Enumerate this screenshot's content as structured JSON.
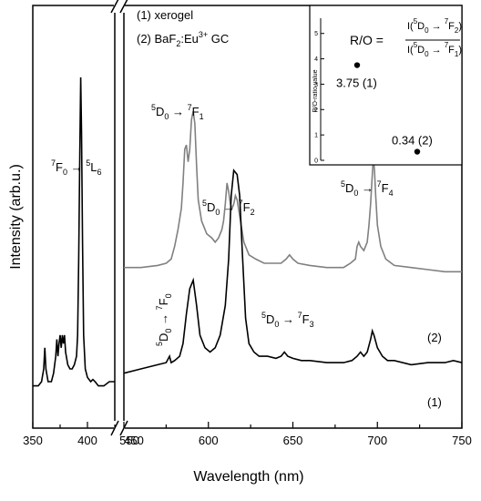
{
  "chart_data": {
    "type": "line",
    "xlabel": "Wavelength (nm)",
    "ylabel": "Intensity (arb.u.)",
    "x_axis_break": {
      "left_range": [
        350,
        425
      ],
      "right_range": [
        550,
        750
      ]
    },
    "left_ticks": [
      "350",
      "400",
      "450"
    ],
    "right_ticks": [
      "550",
      "600",
      "650",
      "700",
      "750"
    ],
    "legend": [
      {
        "id": "1",
        "text": "(1) xerogel"
      },
      {
        "id": "2",
        "prefix": "(2) BaF",
        "sub": "2",
        "mid": ":Eu",
        "sup": "3+",
        "suffix": " GC"
      }
    ],
    "series": [
      {
        "label": "(1)",
        "color": "#000000",
        "left_points": [
          [
            350,
            0.1
          ],
          [
            355,
            0.1
          ],
          [
            358,
            0.11
          ],
          [
            360,
            0.14
          ],
          [
            361,
            0.19
          ],
          [
            362,
            0.14
          ],
          [
            364,
            0.11
          ],
          [
            367,
            0.11
          ],
          [
            369,
            0.13
          ],
          [
            371,
            0.17
          ],
          [
            372,
            0.21
          ],
          [
            373,
            0.17
          ],
          [
            374,
            0.2
          ],
          [
            375,
            0.22
          ],
          [
            376,
            0.19
          ],
          [
            377,
            0.22
          ],
          [
            378,
            0.2
          ],
          [
            379,
            0.22
          ],
          [
            380,
            0.18
          ],
          [
            382,
            0.15
          ],
          [
            384,
            0.14
          ],
          [
            386,
            0.14
          ],
          [
            388,
            0.15
          ],
          [
            390,
            0.17
          ],
          [
            391,
            0.22
          ],
          [
            392,
            0.4
          ],
          [
            393,
            0.65
          ],
          [
            393.8,
            0.83
          ],
          [
            394.6,
            0.7
          ],
          [
            395.5,
            0.44
          ],
          [
            396.5,
            0.22
          ],
          [
            398,
            0.14
          ],
          [
            400,
            0.12
          ],
          [
            403,
            0.11
          ],
          [
            405,
            0.115
          ],
          [
            407,
            0.11
          ],
          [
            410,
            0.1
          ],
          [
            415,
            0.1
          ],
          [
            420,
            0.11
          ],
          [
            425,
            0.11
          ]
        ],
        "right_points": [
          [
            550,
            0.13
          ],
          [
            560,
            0.14
          ],
          [
            570,
            0.15
          ],
          [
            575,
            0.155
          ],
          [
            577,
            0.17
          ],
          [
            578,
            0.155
          ],
          [
            580,
            0.16
          ],
          [
            583,
            0.17
          ],
          [
            585,
            0.2
          ],
          [
            587,
            0.27
          ],
          [
            589,
            0.33
          ],
          [
            591,
            0.35
          ],
          [
            593,
            0.29
          ],
          [
            595,
            0.22
          ],
          [
            598,
            0.19
          ],
          [
            601,
            0.18
          ],
          [
            604,
            0.19
          ],
          [
            607,
            0.22
          ],
          [
            610,
            0.29
          ],
          [
            612,
            0.4
          ],
          [
            613.5,
            0.55
          ],
          [
            615,
            0.61
          ],
          [
            617,
            0.6
          ],
          [
            618.5,
            0.55
          ],
          [
            620,
            0.42
          ],
          [
            622,
            0.26
          ],
          [
            624,
            0.2
          ],
          [
            627,
            0.18
          ],
          [
            630,
            0.17
          ],
          [
            635,
            0.17
          ],
          [
            640,
            0.165
          ],
          [
            643,
            0.17
          ],
          [
            645,
            0.18
          ],
          [
            647,
            0.17
          ],
          [
            650,
            0.165
          ],
          [
            655,
            0.16
          ],
          [
            660,
            0.16
          ],
          [
            670,
            0.155
          ],
          [
            680,
            0.155
          ],
          [
            685,
            0.16
          ],
          [
            688,
            0.17
          ],
          [
            690,
            0.18
          ],
          [
            692,
            0.17
          ],
          [
            694,
            0.18
          ],
          [
            696,
            0.21
          ],
          [
            697,
            0.23
          ],
          [
            698,
            0.22
          ],
          [
            700,
            0.19
          ],
          [
            703,
            0.17
          ],
          [
            706,
            0.16
          ],
          [
            710,
            0.16
          ],
          [
            720,
            0.15
          ],
          [
            730,
            0.155
          ],
          [
            740,
            0.155
          ],
          [
            745,
            0.16
          ],
          [
            750,
            0.155
          ]
        ]
      },
      {
        "label": "(2)",
        "color": "#808080",
        "right_points": [
          [
            550,
            0.38
          ],
          [
            560,
            0.38
          ],
          [
            570,
            0.385
          ],
          [
            575,
            0.39
          ],
          [
            578,
            0.4
          ],
          [
            580,
            0.43
          ],
          [
            582,
            0.47
          ],
          [
            584,
            0.52
          ],
          [
            585,
            0.58
          ],
          [
            586,
            0.66
          ],
          [
            587,
            0.67
          ],
          [
            588,
            0.63
          ],
          [
            589,
            0.66
          ],
          [
            590,
            0.73
          ],
          [
            591,
            0.75
          ],
          [
            592,
            0.72
          ],
          [
            593,
            0.62
          ],
          [
            594,
            0.54
          ],
          [
            596,
            0.49
          ],
          [
            599,
            0.46
          ],
          [
            602,
            0.45
          ],
          [
            604,
            0.44
          ],
          [
            606,
            0.45
          ],
          [
            608,
            0.47
          ],
          [
            609,
            0.49
          ],
          [
            610,
            0.53
          ],
          [
            611,
            0.58
          ],
          [
            612,
            0.56
          ],
          [
            613,
            0.53
          ],
          [
            614,
            0.52
          ],
          [
            615,
            0.53
          ],
          [
            616,
            0.55
          ],
          [
            617,
            0.54
          ],
          [
            619,
            0.49
          ],
          [
            621,
            0.44
          ],
          [
            624,
            0.41
          ],
          [
            628,
            0.4
          ],
          [
            633,
            0.39
          ],
          [
            638,
            0.39
          ],
          [
            643,
            0.39
          ],
          [
            646,
            0.4
          ],
          [
            648,
            0.41
          ],
          [
            650,
            0.4
          ],
          [
            653,
            0.39
          ],
          [
            660,
            0.385
          ],
          [
            670,
            0.38
          ],
          [
            680,
            0.38
          ],
          [
            684,
            0.39
          ],
          [
            687,
            0.4
          ],
          [
            688,
            0.43
          ],
          [
            689,
            0.44
          ],
          [
            690,
            0.43
          ],
          [
            692,
            0.42
          ],
          [
            694,
            0.44
          ],
          [
            695,
            0.48
          ],
          [
            696,
            0.53
          ],
          [
            697,
            0.6
          ],
          [
            697.6,
            0.64
          ],
          [
            698.3,
            0.61
          ],
          [
            699,
            0.55
          ],
          [
            700,
            0.48
          ],
          [
            702,
            0.43
          ],
          [
            705,
            0.4
          ],
          [
            710,
            0.385
          ],
          [
            720,
            0.38
          ],
          [
            730,
            0.375
          ],
          [
            740,
            0.37
          ],
          [
            745,
            0.37
          ],
          [
            750,
            0.37
          ]
        ]
      }
    ],
    "series_labels": [
      {
        "text": "(2)",
        "series": 2
      },
      {
        "text": "(1)",
        "series": 1
      }
    ],
    "annotations": [
      {
        "id": "L6",
        "parts": [
          [
            "sup",
            "7"
          ],
          [
            "n",
            "F"
          ],
          [
            "sub",
            "0"
          ],
          [
            "n",
            " → "
          ],
          [
            "sup",
            "5"
          ],
          [
            "n",
            "L"
          ],
          [
            "sub",
            "6"
          ]
        ]
      },
      {
        "id": "F1",
        "parts": [
          [
            "sup",
            "5"
          ],
          [
            "n",
            "D"
          ],
          [
            "sub",
            "0"
          ],
          [
            "n",
            " → "
          ],
          [
            "sup",
            "7"
          ],
          [
            "n",
            "F"
          ],
          [
            "sub",
            "1"
          ]
        ]
      },
      {
        "id": "F2",
        "parts": [
          [
            "sup",
            "5"
          ],
          [
            "n",
            "D"
          ],
          [
            "sub",
            "0"
          ],
          [
            "n",
            " → "
          ],
          [
            "sup",
            "7"
          ],
          [
            "n",
            "F"
          ],
          [
            "sub",
            "2"
          ]
        ]
      },
      {
        "id": "F3",
        "parts": [
          [
            "sup",
            "5"
          ],
          [
            "n",
            "D"
          ],
          [
            "sub",
            "0"
          ],
          [
            "n",
            " → "
          ],
          [
            "sup",
            "7"
          ],
          [
            "n",
            "F"
          ],
          [
            "sub",
            "3"
          ]
        ]
      },
      {
        "id": "F4",
        "parts": [
          [
            "sup",
            "5"
          ],
          [
            "n",
            "D"
          ],
          [
            "sub",
            "0"
          ],
          [
            "n",
            " → "
          ],
          [
            "sup",
            "7"
          ],
          [
            "n",
            "F"
          ],
          [
            "sub",
            "4"
          ]
        ]
      },
      {
        "id": "F0",
        "parts": [
          [
            "sup",
            "5"
          ],
          [
            "n",
            "D"
          ],
          [
            "sub",
            "0"
          ],
          [
            "n",
            " → "
          ],
          [
            "sup",
            "7"
          ],
          [
            "n",
            "F"
          ],
          [
            "sub",
            "0"
          ]
        ]
      }
    ],
    "inset": {
      "ylabel": "R/O-ratio value",
      "y_ticks": [
        "0",
        "1",
        "2",
        "3",
        "4",
        "5"
      ],
      "ylim": [
        0,
        5.6
      ],
      "formula_lhs": "R/O =",
      "numerator_parts": [
        [
          "n",
          "I("
        ],
        [
          "sup",
          "5"
        ],
        [
          "n",
          "D"
        ],
        [
          "sub",
          "0"
        ],
        [
          "n",
          " → "
        ],
        [
          "sup",
          "7"
        ],
        [
          "n",
          "F"
        ],
        [
          "sub",
          "2"
        ],
        [
          "n",
          ")"
        ]
      ],
      "denominator_parts": [
        [
          "n",
          "I("
        ],
        [
          "sup",
          "5"
        ],
        [
          "n",
          "D"
        ],
        [
          "sub",
          "0"
        ],
        [
          "n",
          " → "
        ],
        [
          "sup",
          "7"
        ],
        [
          "n",
          "F"
        ],
        [
          "sub",
          "1"
        ],
        [
          "n",
          ")"
        ]
      ],
      "points": [
        {
          "value": 3.75,
          "label": "3.75 (1)"
        },
        {
          "value": 0.34,
          "label": "0.34 (2)"
        }
      ]
    }
  }
}
